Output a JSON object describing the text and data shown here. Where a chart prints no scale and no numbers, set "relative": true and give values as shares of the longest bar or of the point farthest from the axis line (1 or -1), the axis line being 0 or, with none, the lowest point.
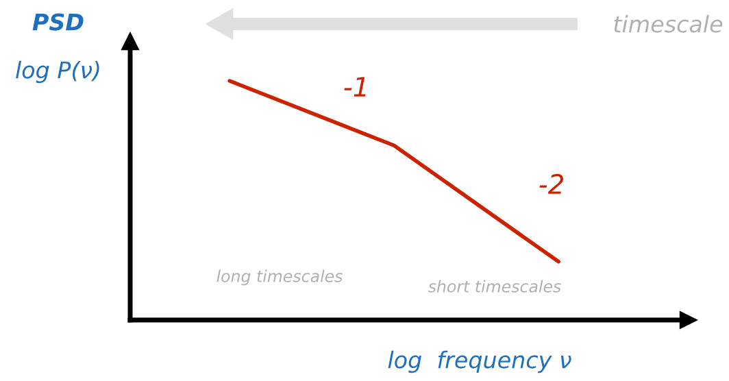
{
  "chart_data": {
    "type": "line",
    "title": "PSD",
    "ylabel": "log P(ν)",
    "xlabel": "log  frequency ν",
    "categories": [
      null,
      null,
      null
    ],
    "relative": true,
    "series": [
      {
        "color": "#cc2200",
        "values": [
          1,
          0.73,
          0.244
        ]
      }
    ],
    "annotations": [
      "-1",
      "-2",
      "long timescales",
      "short timescales",
      "timescale"
    ],
    "grid": false,
    "legend": false,
    "marker": "none",
    "line_style": "solid"
  }
}
